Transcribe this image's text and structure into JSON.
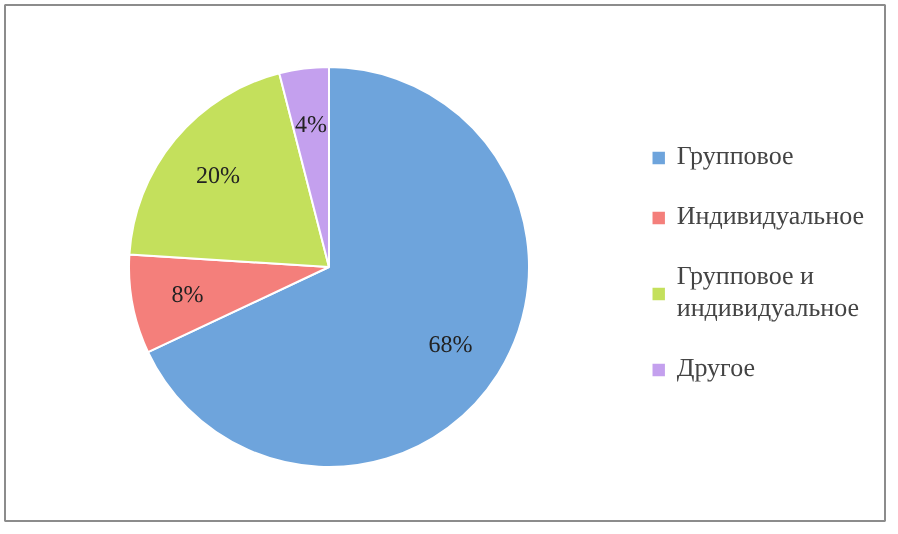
{
  "chart_data": {
    "type": "pie",
    "categories": [
      "Групповое",
      "Индивидуальное",
      "Групповое и индивидуальное",
      "Другое"
    ],
    "values": [
      68,
      8,
      20,
      4
    ],
    "colors": [
      "#6ea4dc",
      "#f47f7b",
      "#c4e05c",
      "#c4a0ee"
    ],
    "value_labels": [
      "68%",
      "8%",
      "20%",
      "4%"
    ],
    "legend": "right"
  }
}
